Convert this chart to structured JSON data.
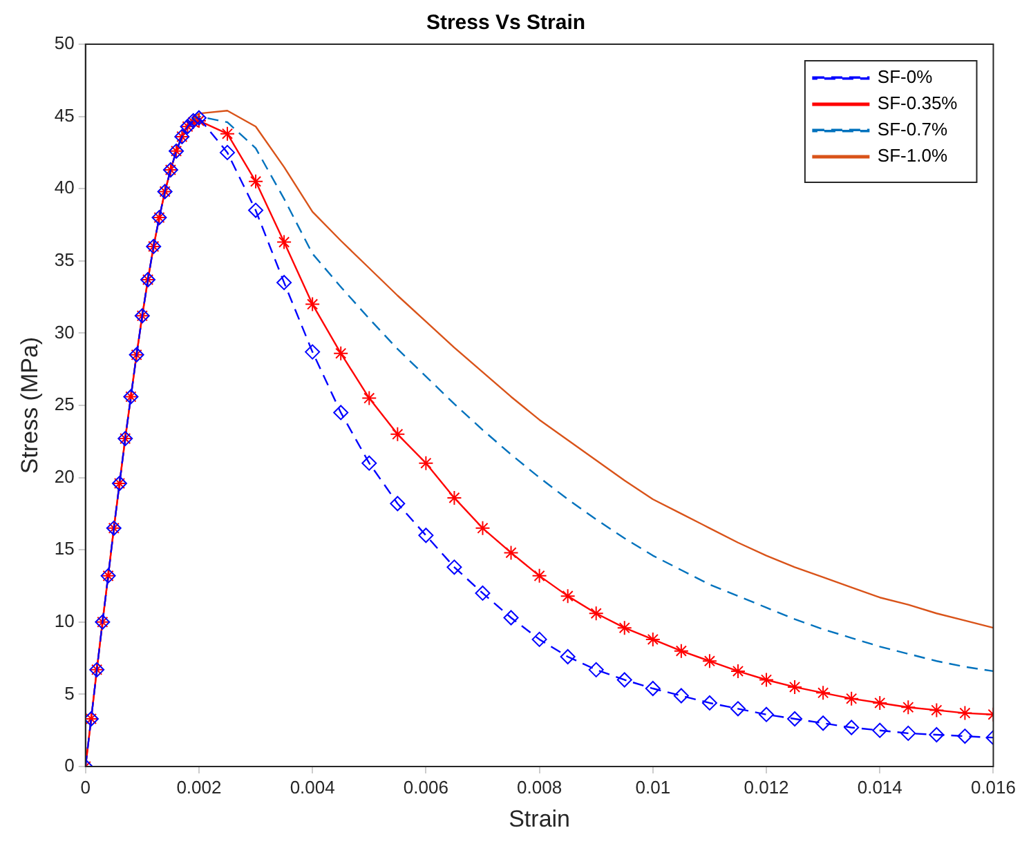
{
  "chart_data": {
    "type": "line",
    "title": "Stress Vs Strain",
    "xlabel": "Strain",
    "ylabel": "Stress (MPa)",
    "x": [
      0,
      0.0001,
      0.0002,
      0.0003,
      0.0004,
      0.0005,
      0.0006,
      0.0007,
      0.0008,
      0.0009,
      0.001,
      0.0011,
      0.0012,
      0.0013,
      0.0014,
      0.0015,
      0.0016,
      0.0017,
      0.0018,
      0.0019,
      0.002,
      0.0025,
      0.003,
      0.0035,
      0.004,
      0.0045,
      0.005,
      0.0055,
      0.006,
      0.0065,
      0.007,
      0.0075,
      0.008,
      0.0085,
      0.009,
      0.0095,
      0.01,
      0.0105,
      0.011,
      0.0115,
      0.012,
      0.0125,
      0.013,
      0.0135,
      0.014,
      0.0145,
      0.015,
      0.0155,
      0.016
    ],
    "series": [
      {
        "name": "SF-0%",
        "color": "#0000ff",
        "marker": "diamond",
        "line_style": "dashed",
        "values": [
          0,
          3.3,
          6.7,
          10,
          13.2,
          16.5,
          19.6,
          22.7,
          25.6,
          28.5,
          31.2,
          33.7,
          36,
          38,
          39.8,
          41.3,
          42.6,
          43.6,
          44.3,
          44.7,
          44.9,
          42.5,
          38.5,
          33.5,
          28.7,
          24.5,
          21,
          18.2,
          16,
          13.8,
          12,
          10.3,
          8.8,
          7.6,
          6.7,
          6,
          5.4,
          4.9,
          4.4,
          4,
          3.6,
          3.3,
          3,
          2.7,
          2.5,
          2.3,
          2.2,
          2.1,
          2
        ]
      },
      {
        "name": "SF-0.35%",
        "color": "#ff0000",
        "marker": "cross",
        "line_style": "solid",
        "values": [
          0,
          3.3,
          6.7,
          10,
          13.2,
          16.5,
          19.6,
          22.7,
          25.6,
          28.5,
          31.2,
          33.7,
          36,
          38,
          39.8,
          41.3,
          42.6,
          43.6,
          44.3,
          44.6,
          44.7,
          43.8,
          40.5,
          36.3,
          32,
          28.6,
          25.5,
          23,
          21,
          18.6,
          16.5,
          14.8,
          13.2,
          11.8,
          10.6,
          9.6,
          8.8,
          8,
          7.3,
          6.6,
          6,
          5.5,
          5.1,
          4.7,
          4.4,
          4.1,
          3.9,
          3.7,
          3.6
        ]
      },
      {
        "name": "SF-0.7%",
        "color": "#0072bd",
        "marker": "none",
        "line_style": "dashed",
        "values": [
          null,
          null,
          null,
          null,
          null,
          null,
          null,
          null,
          null,
          null,
          null,
          null,
          null,
          null,
          null,
          null,
          null,
          43.6,
          44.3,
          44.8,
          45,
          44.6,
          42.8,
          39.3,
          35.5,
          33.2,
          31,
          28.9,
          27,
          25.1,
          23.3,
          21.6,
          20,
          18.5,
          17.1,
          15.8,
          14.6,
          13.6,
          12.6,
          11.8,
          11,
          10.2,
          9.5,
          8.9,
          8.3,
          7.8,
          7.3,
          6.9,
          6.6
        ]
      },
      {
        "name": "SF-1.0%",
        "color": "#d95319",
        "marker": "none",
        "line_style": "solid",
        "values": [
          0,
          3.3,
          6.7,
          10,
          13.2,
          16.5,
          19.6,
          22.7,
          25.6,
          28.5,
          31.2,
          33.7,
          36,
          38,
          39.8,
          41.3,
          42.6,
          43.7,
          44.4,
          44.9,
          45.2,
          45.4,
          44.3,
          41.5,
          38.4,
          36.4,
          34.5,
          32.6,
          30.8,
          29,
          27.3,
          25.6,
          24,
          22.6,
          21.2,
          19.8,
          18.5,
          17.5,
          16.5,
          15.5,
          14.6,
          13.8,
          13.1,
          12.4,
          11.7,
          11.2,
          10.6,
          10.1,
          9.6
        ]
      }
    ],
    "xlim": [
      0,
      0.016
    ],
    "xticks": [
      0,
      0.002,
      0.004,
      0.006,
      0.008,
      0.01,
      0.012,
      0.014,
      0.016
    ],
    "ylim": [
      0,
      50
    ],
    "yticks": [
      0,
      5,
      10,
      15,
      20,
      25,
      30,
      35,
      40,
      45,
      50
    ],
    "grid": false,
    "legend": "top right"
  }
}
